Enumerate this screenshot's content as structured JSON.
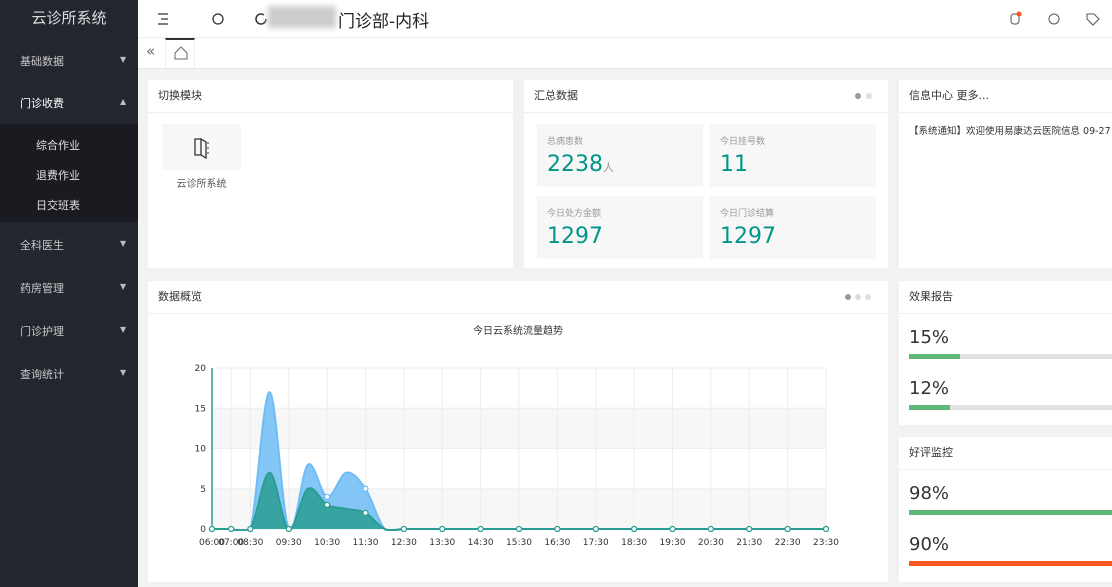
{
  "sidebar": {
    "title": "云诊所系统",
    "menu": [
      {
        "label": "基础数据"
      },
      {
        "label": "门诊收费",
        "children": [
          "综合作业",
          "退费作业",
          "日交班表"
        ]
      },
      {
        "label": "全科医生"
      },
      {
        "label": "药房管理"
      },
      {
        "label": "门诊护理"
      },
      {
        "label": "查询统计"
      }
    ]
  },
  "header": {
    "title": "门诊部-内科"
  },
  "module_card": {
    "title": "切换模块",
    "items": [
      "云诊所系统"
    ]
  },
  "summary": {
    "title": "汇总数据",
    "stats": [
      {
        "label": "总病患数",
        "value": 2238,
        "unit": "人"
      },
      {
        "label": "今日挂号数",
        "value": 11
      },
      {
        "label": "今日处方金额",
        "value": 1297
      },
      {
        "label": "今日门诊结算",
        "value": 1297
      }
    ]
  },
  "info": {
    "title": "信息中心 更多...",
    "messages": [
      "【系统通知】欢迎使用易康达云医院信息 09-27"
    ]
  },
  "effect": {
    "title": "效果报告",
    "values": [
      15,
      12
    ],
    "value_labels": [
      "15%",
      "12%"
    ],
    "colors": [
      "#5fb878",
      "#5fb878"
    ]
  },
  "rating": {
    "title": "好评监控",
    "values": [
      98,
      90
    ],
    "value_labels": [
      "98%",
      "90%"
    ],
    "colors": [
      "#5fb878",
      "#ff5722"
    ]
  },
  "chart_data": {
    "type": "area",
    "panel_title": "数据概览",
    "title": "今日云系统流量趋势",
    "categories": [
      "06:00",
      "07:00",
      "08:30",
      null,
      "09:30",
      null,
      "10:30",
      null,
      "11:30",
      null,
      "12:30",
      null,
      "13:30",
      null,
      "14:30",
      null,
      "15:30",
      null,
      "16:30",
      null,
      "17:30",
      null,
      "18:30",
      null,
      "19:30",
      null,
      "20:30",
      null,
      "21:30",
      null,
      "22:30",
      null,
      "23:30"
    ],
    "series": [
      {
        "color": "#6fbdf6",
        "values": [
          0,
          0,
          0,
          17,
          0,
          8,
          4,
          7,
          5,
          0,
          0,
          0,
          0,
          0,
          0,
          0,
          0,
          0,
          0,
          0,
          0,
          0,
          0,
          0,
          0,
          0,
          0,
          0,
          0,
          0,
          0,
          0,
          0
        ]
      },
      {
        "color": "#2a9d93",
        "values": [
          0,
          0,
          0,
          7,
          0,
          5,
          3,
          2.5,
          2,
          0,
          0,
          0,
          0,
          0,
          0,
          0,
          0,
          0,
          0,
          0,
          0,
          0,
          0,
          0,
          0,
          0,
          0,
          0,
          0,
          0,
          0,
          0,
          0
        ]
      }
    ],
    "ylim": [
      0,
      20
    ],
    "yticks": [
      0,
      5,
      10,
      15,
      20
    ],
    "grid": true
  }
}
